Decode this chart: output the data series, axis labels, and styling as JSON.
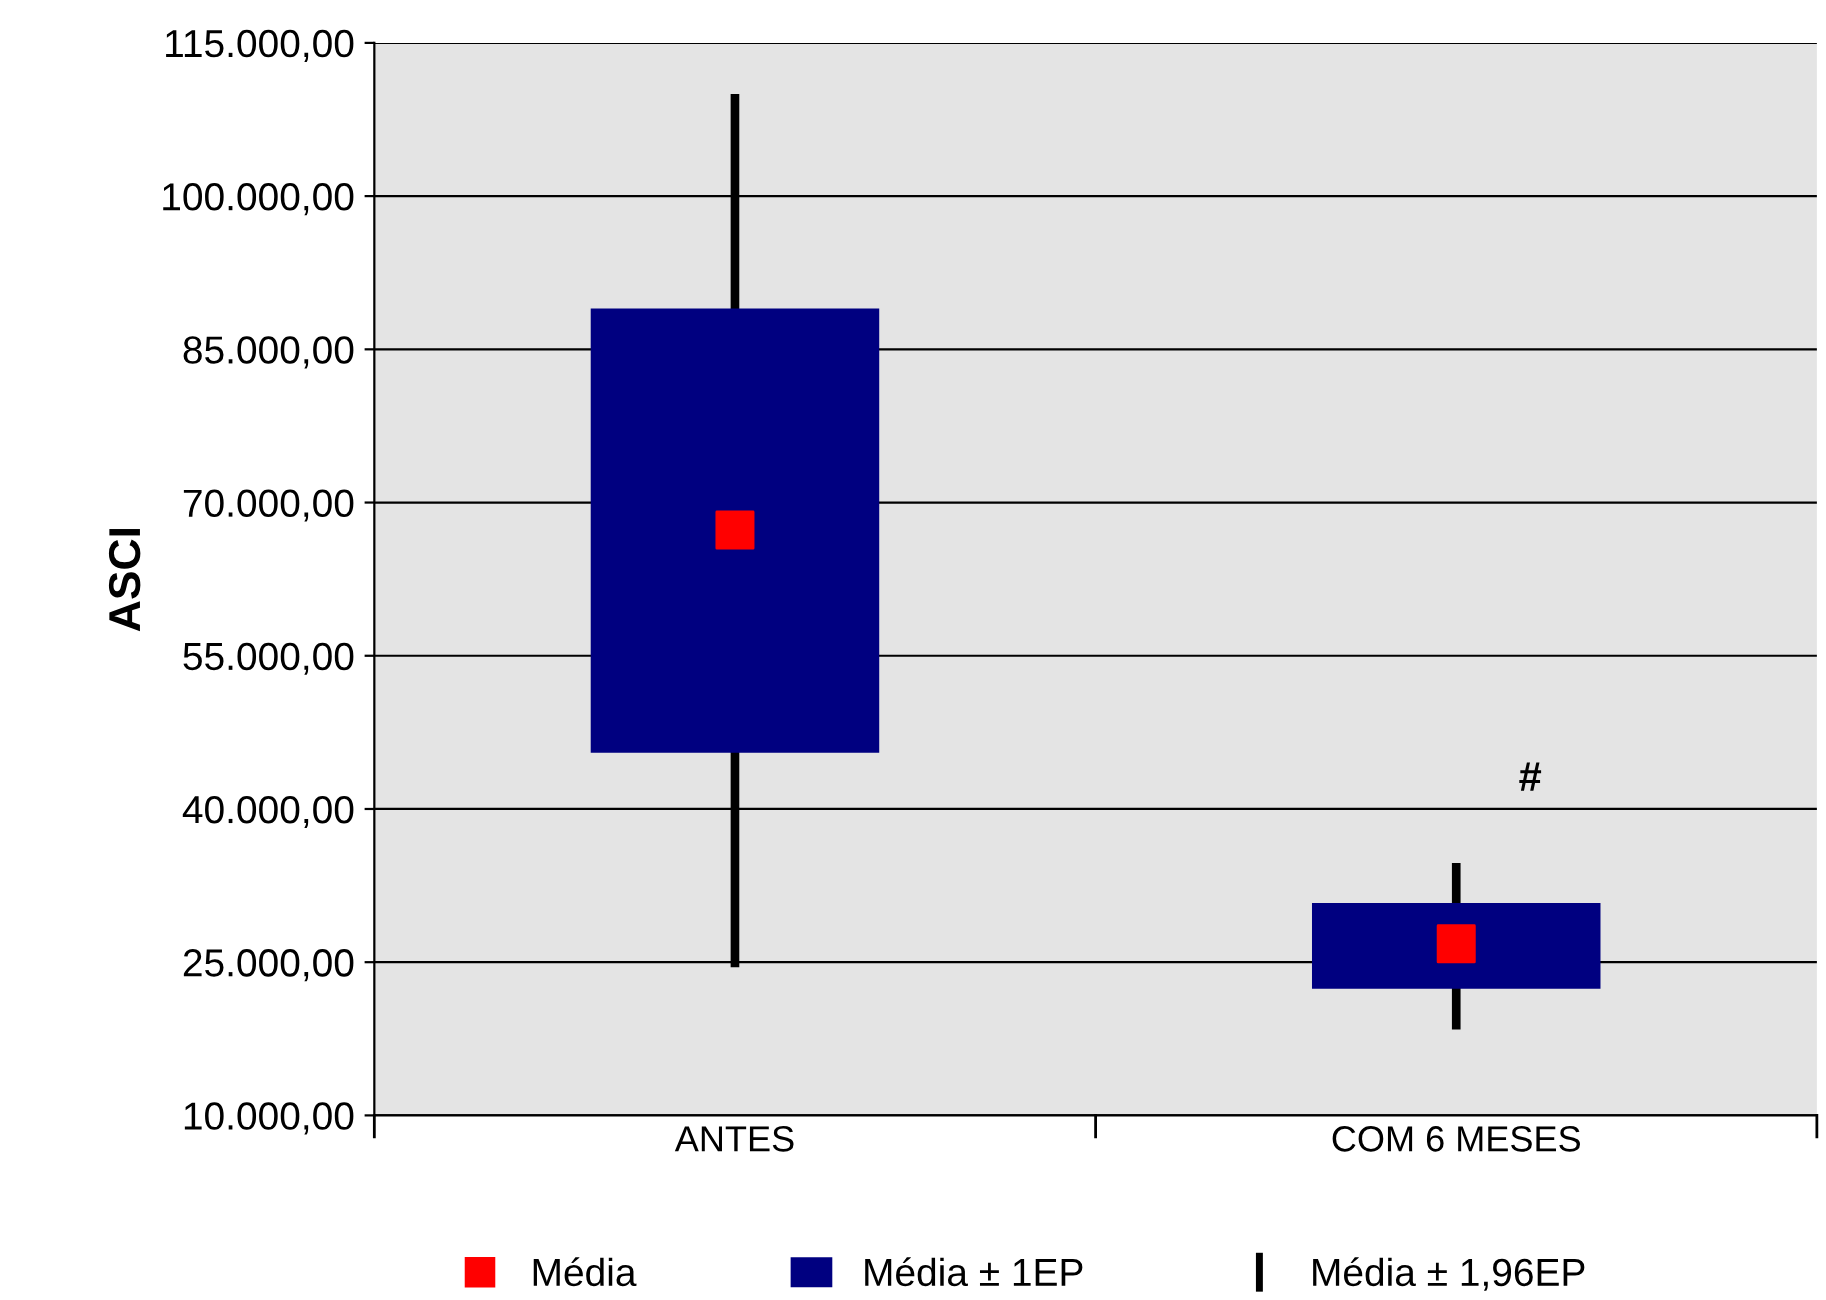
{
  "chart_data": {
    "type": "bar",
    "ylabel": "ASCI",
    "categories": [
      "ANTES",
      "COM 6 MESES"
    ],
    "series": [
      {
        "name": "Média",
        "type": "scatter",
        "color": "#ff0000",
        "marker": "square",
        "values": [
          67300,
          26800
        ]
      },
      {
        "name": "Média ± 1EP",
        "color": "#000080",
        "base": [
          45500,
          22400
        ],
        "values": [
          43500,
          8400
        ]
      },
      {
        "name": "Média ± 1,96EP",
        "color": "#000000",
        "base": [
          24500,
          18400
        ],
        "values": [
          85500,
          16300
        ]
      }
    ],
    "ylim": [
      10000,
      115000
    ],
    "yticks": [
      {
        "value": 10000,
        "label": "10.000,00"
      },
      {
        "value": 25000,
        "label": "25.000,00"
      },
      {
        "value": 40000,
        "label": "40.000,00"
      },
      {
        "value": 55000,
        "label": "55.000,00"
      },
      {
        "value": 70000,
        "label": "70.000,00"
      },
      {
        "value": 85000,
        "label": "85.000,00"
      },
      {
        "value": 100000,
        "label": "100.000,00"
      },
      {
        "value": 115000,
        "label": "115.000,00"
      }
    ],
    "grid": "y",
    "legend": "bottom",
    "annotations": [
      "#"
    ]
  }
}
